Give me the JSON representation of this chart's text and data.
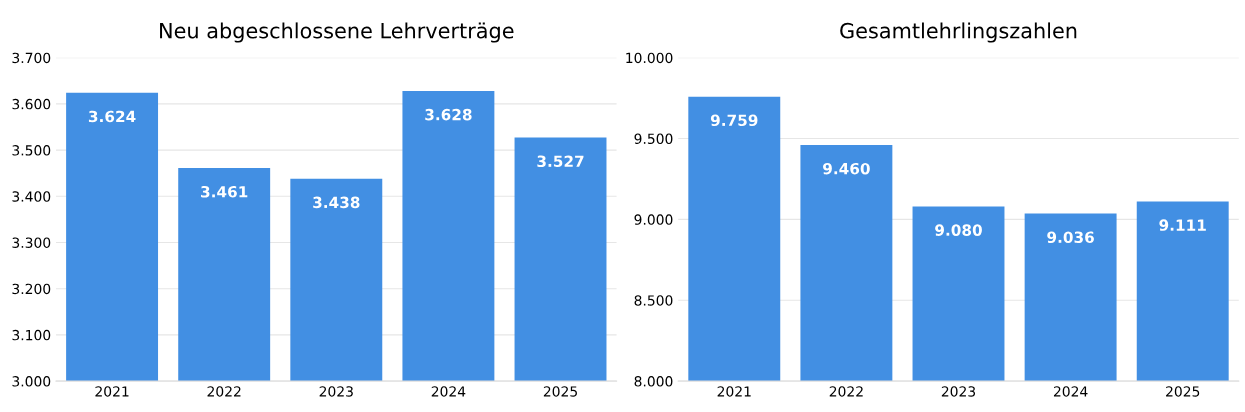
{
  "chart_data": [
    {
      "type": "bar",
      "title": "Neu abgeschlossene Lehrverträge",
      "categories": [
        "2021",
        "2022",
        "2023",
        "2024",
        "2025"
      ],
      "values": [
        3624,
        3461,
        3438,
        3628,
        3527
      ],
      "value_labels": [
        "3.624",
        "3.461",
        "3.438",
        "3.628",
        "3.527"
      ],
      "color": "#428fe3",
      "ylim": [
        3000,
        3700
      ],
      "yticks": [
        {
          "value": 3000,
          "label": "3.000"
        },
        {
          "value": 3100,
          "label": "3.100"
        },
        {
          "value": 3200,
          "label": "3.200"
        },
        {
          "value": 3300,
          "label": "3.300"
        },
        {
          "value": 3400,
          "label": "3.400"
        },
        {
          "value": 3500,
          "label": "3.500"
        },
        {
          "value": 3600,
          "label": "3.600"
        },
        {
          "value": 3700,
          "label": "3.700"
        }
      ],
      "grid": "y"
    },
    {
      "type": "bar",
      "title": "Gesamtlehrlingszahlen",
      "categories": [
        "2021",
        "2022",
        "2023",
        "2024",
        "2025"
      ],
      "values": [
        9759,
        9460,
        9080,
        9036,
        9111
      ],
      "value_labels": [
        "9.759",
        "9.460",
        "9.080",
        "9.036",
        "9.111"
      ],
      "color": "#428fe3",
      "ylim": [
        8000,
        10000
      ],
      "yticks": [
        {
          "value": 8000,
          "label": "8.000"
        },
        {
          "value": 8500,
          "label": "8.500"
        },
        {
          "value": 9000,
          "label": "9.000"
        },
        {
          "value": 9500,
          "label": "9.500"
        },
        {
          "value": 10000,
          "label": "10.000"
        }
      ],
      "grid": "y"
    }
  ]
}
